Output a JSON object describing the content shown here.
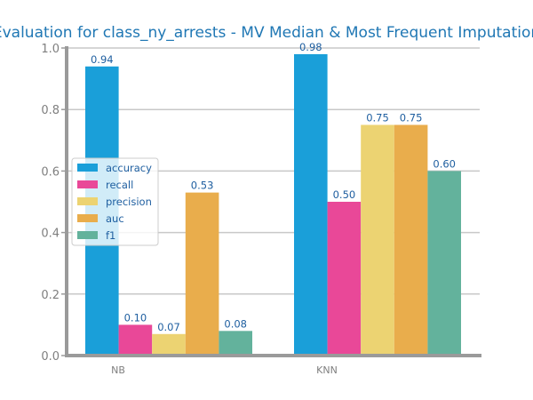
{
  "chart_data": {
    "type": "bar",
    "title": "Evaluation for class_ny_arrests - MV Median & Most Frequent Imputation",
    "xlabel": "",
    "ylabel": "",
    "categories": [
      "NB",
      "KNN"
    ],
    "series": [
      {
        "name": "accuracy",
        "color": "#1a9fd9",
        "values": [
          0.94,
          0.98
        ]
      },
      {
        "name": "recall",
        "color": "#e94898",
        "values": [
          0.1,
          0.5
        ]
      },
      {
        "name": "precision",
        "color": "#ecd372",
        "values": [
          0.07,
          0.75
        ]
      },
      {
        "name": "auc",
        "color": "#e9ad4c",
        "values": [
          0.53,
          0.75
        ]
      },
      {
        "name": "f1",
        "color": "#63b29c",
        "values": [
          0.08,
          0.6
        ]
      }
    ],
    "data_labels": [
      [
        "0.94",
        "0.10",
        "0.07",
        "0.53",
        "0.08"
      ],
      [
        "0.98",
        "0.50",
        "0.75",
        "0.75",
        "0.60"
      ]
    ],
    "ylim": [
      0,
      1.0
    ],
    "yticks": [
      "0.0",
      "0.2",
      "0.4",
      "0.6",
      "0.8",
      "1.0"
    ],
    "grid": true,
    "legend_position": "center-left"
  }
}
